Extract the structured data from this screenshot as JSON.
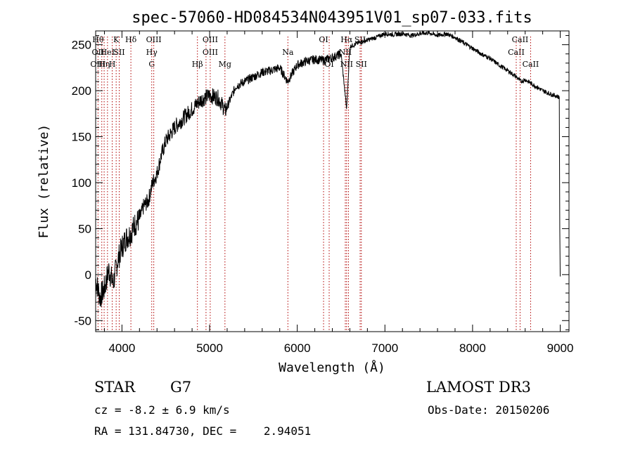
{
  "chart_data": {
    "type": "line",
    "title": "spec-57060-HD084534N043951V01_sp07-033.fits",
    "xlabel": "Wavelength (Å)",
    "ylabel": "Flux (relative)",
    "xlim": [
      3700,
      9100
    ],
    "ylim": [
      -62,
      265
    ],
    "xticks": [
      4000,
      5000,
      6000,
      7000,
      8000,
      9000
    ],
    "yticks": [
      -50,
      0,
      50,
      100,
      150,
      200,
      250
    ],
    "series": [
      {
        "x": [
          3700,
          3750,
          3800,
          3850,
          3900,
          3950,
          4000,
          4050,
          4100,
          4150,
          4200,
          4250,
          4300,
          4350,
          4400,
          4450,
          4500,
          4600,
          4700,
          4800,
          4900,
          5000,
          5100,
          5180,
          5300,
          5400,
          5500,
          5600,
          5700,
          5800,
          5890,
          6000,
          6100,
          6200,
          6300,
          6400,
          6500,
          6563,
          6600,
          6700,
          6800,
          6900,
          7000,
          7100,
          7200,
          7300,
          7400,
          7500,
          7600,
          7700,
          7800,
          7900,
          8000,
          8100,
          8200,
          8300,
          8400,
          8500,
          8550,
          8600,
          8700,
          8800,
          8900,
          8990,
          9000
        ],
        "y": [
          -5,
          -25,
          -15,
          5,
          -10,
          15,
          30,
          40,
          45,
          55,
          60,
          75,
          80,
          100,
          110,
          130,
          145,
          160,
          170,
          180,
          190,
          195,
          192,
          178,
          205,
          210,
          215,
          220,
          222,
          225,
          210,
          228,
          232,
          234,
          233,
          236,
          240,
          180,
          248,
          252,
          255,
          258,
          262,
          261,
          262,
          260,
          262,
          263,
          260,
          262,
          258,
          252,
          246,
          240,
          235,
          228,
          222,
          215,
          210,
          212,
          206,
          200,
          196,
          193,
          -2
        ]
      }
    ],
    "line_markers": [
      {
        "wl": 3727,
        "rows": [
          "Hθ",
          "OII",
          "OIII"
        ]
      },
      {
        "wl": 3770,
        "rows": [
          "",
          "",
          ""
        ]
      },
      {
        "wl": 3797,
        "rows": [
          "",
          "",
          "Hη"
        ]
      },
      {
        "wl": 3835,
        "rows": [
          "",
          "HeI",
          ""
        ]
      },
      {
        "wl": 3889,
        "rows": [
          "",
          "",
          "H"
        ]
      },
      {
        "wl": 3934,
        "rows": [
          "K",
          "",
          ""
        ]
      },
      {
        "wl": 3969,
        "rows": [
          "",
          "SII",
          ""
        ]
      },
      {
        "wl": 4102,
        "rows": [
          "Hδ",
          "",
          ""
        ]
      },
      {
        "wl": 4340,
        "rows": [
          "",
          "Hγ",
          "G"
        ]
      },
      {
        "wl": 4363,
        "rows": [
          "OIII",
          "",
          ""
        ]
      },
      {
        "wl": 4861,
        "rows": [
          "",
          "",
          "Hβ"
        ]
      },
      {
        "wl": 4959,
        "rows": [
          "",
          "",
          ""
        ]
      },
      {
        "wl": 5007,
        "rows": [
          "OIII",
          "OIII",
          ""
        ]
      },
      {
        "wl": 5175,
        "rows": [
          "",
          "",
          "Mg"
        ]
      },
      {
        "wl": 5893,
        "rows": [
          "",
          "Na",
          ""
        ]
      },
      {
        "wl": 6300,
        "rows": [
          "OI",
          "",
          ""
        ]
      },
      {
        "wl": 6364,
        "rows": [
          "",
          "",
          "OI"
        ]
      },
      {
        "wl": 6548,
        "rows": [
          "",
          "NII",
          ""
        ]
      },
      {
        "wl": 6563,
        "rows": [
          "Hα",
          "",
          "NII"
        ]
      },
      {
        "wl": 6584,
        "rows": [
          "",
          "",
          ""
        ]
      },
      {
        "wl": 6717,
        "rows": [
          "SII",
          "",
          ""
        ]
      },
      {
        "wl": 6731,
        "rows": [
          "",
          "",
          "SII"
        ]
      },
      {
        "wl": 8498,
        "rows": [
          "",
          "CaII",
          ""
        ]
      },
      {
        "wl": 8542,
        "rows": [
          "CaII",
          "",
          ""
        ]
      },
      {
        "wl": 8662,
        "rows": [
          "",
          "",
          "CaII"
        ]
      }
    ]
  },
  "info": {
    "object_class": "STAR",
    "subclass": "G7",
    "survey": "LAMOST DR3",
    "cz": "cz = -8.2 ± 6.9 km/s",
    "obs_date": "Obs-Date: 20150206",
    "coords": "RA = 131.84730, DEC =    2.94051"
  },
  "colors": {
    "spectrum": "#000000",
    "marker": "#b00000"
  }
}
